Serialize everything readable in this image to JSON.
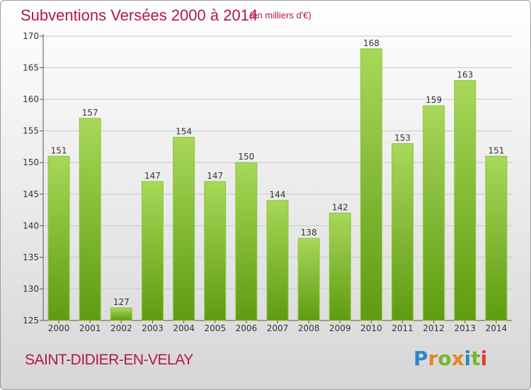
{
  "title": "Subventions Versées 2000 à 2014",
  "unit_note": "(en milliers d'€)",
  "commune": "SAINT-DIDIER-EN-VELAY",
  "logo_text": "Proxiti",
  "colors": {
    "title": "#b0184a",
    "bar_light": "#a8d858",
    "bar_dark": "#5e9b12",
    "grid": "#c8c8c8"
  },
  "chart_data": {
    "type": "bar",
    "categories": [
      "2000",
      "2001",
      "2002",
      "2003",
      "2004",
      "2005",
      "2006",
      "2007",
      "2008",
      "2009",
      "2010",
      "2011",
      "2012",
      "2013",
      "2014"
    ],
    "values": [
      151,
      157,
      127,
      147,
      154,
      147,
      150,
      144,
      138,
      142,
      168,
      153,
      159,
      163,
      151
    ],
    "title": "Subventions Versées 2000 à 2014",
    "ylim": [
      125,
      170
    ],
    "yticks": [
      125,
      130,
      135,
      140,
      145,
      150,
      155,
      160,
      165,
      170
    ],
    "grid": true
  }
}
